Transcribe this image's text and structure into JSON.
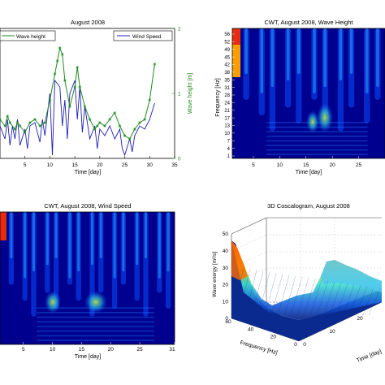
{
  "chart_data": [
    {
      "type": "line",
      "title": "August 2008",
      "xlabel": "Time [day]",
      "ylabel_right": "Wave height [m]",
      "xlim": [
        0,
        35
      ],
      "x_ticks": [
        "5",
        "10",
        "15",
        "20",
        "25",
        "30",
        "35"
      ],
      "y_right_ticks": [
        "0",
        "1",
        "2"
      ],
      "y_right_lim": [
        0,
        2
      ],
      "legend": [
        "Wave height",
        "Wind Speed"
      ],
      "colors": {
        "wave": "#228b22",
        "wind": "#1f1fb4"
      },
      "series": [
        {
          "name": "Wave height",
          "x": [
            0,
            1,
            1.5,
            2,
            3,
            3.5,
            4,
            5,
            6,
            7,
            8,
            9,
            10,
            11,
            11.5,
            12,
            12.5,
            13,
            14,
            15,
            15.5,
            16,
            17,
            18,
            19,
            19.5,
            20,
            21,
            22,
            23,
            24,
            25,
            26,
            27,
            28,
            29,
            30,
            31
          ],
          "values": [
            0.6,
            0.5,
            0.65,
            0.55,
            0.45,
            0.55,
            0.5,
            0.4,
            0.55,
            0.6,
            0.5,
            0.55,
            0.9,
            1.3,
            1.5,
            1.7,
            1.6,
            1.2,
            0.8,
            1.1,
            1.4,
            1.1,
            0.8,
            0.6,
            0.45,
            0.5,
            0.55,
            0.5,
            0.6,
            0.7,
            0.5,
            0.35,
            0.3,
            0.45,
            0.55,
            0.6,
            0.9,
            1.45
          ]
        },
        {
          "name": "Wind Speed",
          "x": [
            0,
            1,
            1.5,
            2,
            2.5,
            3,
            3.5,
            4,
            5,
            5.5,
            6,
            7,
            8,
            8.5,
            9,
            10,
            10.5,
            11,
            12,
            12.5,
            13,
            13.5,
            14,
            15,
            15.5,
            16,
            16.5,
            17,
            18,
            19,
            19.5,
            20,
            21,
            22,
            23,
            24,
            24.5,
            25,
            26,
            26.5,
            27,
            28,
            29,
            30,
            31
          ],
          "values": [
            0.5,
            0.3,
            0.6,
            0.2,
            0.5,
            0.3,
            0.6,
            0.2,
            0.45,
            0.15,
            0.5,
            0.55,
            0.25,
            0.6,
            0.35,
            1.0,
            0.05,
            1.2,
            1.1,
            0.5,
            0.9,
            0.3,
            1.0,
            1.2,
            0.6,
            1.1,
            0.4,
            0.8,
            0.3,
            0.5,
            0.15,
            0.45,
            0.35,
            0.5,
            0.3,
            0.45,
            0.15,
            0.05,
            0.3,
            0.1,
            0.35,
            0.5,
            0.45,
            0.6,
            0.85
          ]
        }
      ]
    },
    {
      "type": "heatmap",
      "title": "CWT, August 2008, Wave Height",
      "xlabel": "Time [day]",
      "ylabel": "Frequency [Hz]",
      "x_ticks": [
        "5",
        "10",
        "15",
        "20",
        "25"
      ],
      "y_ticks": [
        "56",
        "52",
        "49",
        "45",
        "42",
        "38",
        "35",
        "31",
        "28",
        "24",
        "21",
        "17",
        "13",
        "10",
        "7",
        "4",
        "1"
      ]
    },
    {
      "type": "heatmap",
      "title": "CWT, August 2008, Wind Speed",
      "xlabel": "Time [day]",
      "x_ticks": [
        "5",
        "10",
        "15",
        "20",
        "25",
        "31"
      ]
    },
    {
      "type": "area",
      "title": "3D Coscalogram, August 2008",
      "xlabel": "Frequency [Hz]",
      "ylabel": "Time [day]",
      "zlabel": "Wave energy [m²/s]",
      "z_ticks": [
        "0",
        "10",
        "20",
        "30",
        "40",
        "50"
      ],
      "freq_ticks": [
        "0",
        "20",
        "40",
        "60"
      ],
      "time_ticks": [
        "0",
        "10",
        "20"
      ],
      "zlim": [
        0,
        50
      ]
    }
  ]
}
